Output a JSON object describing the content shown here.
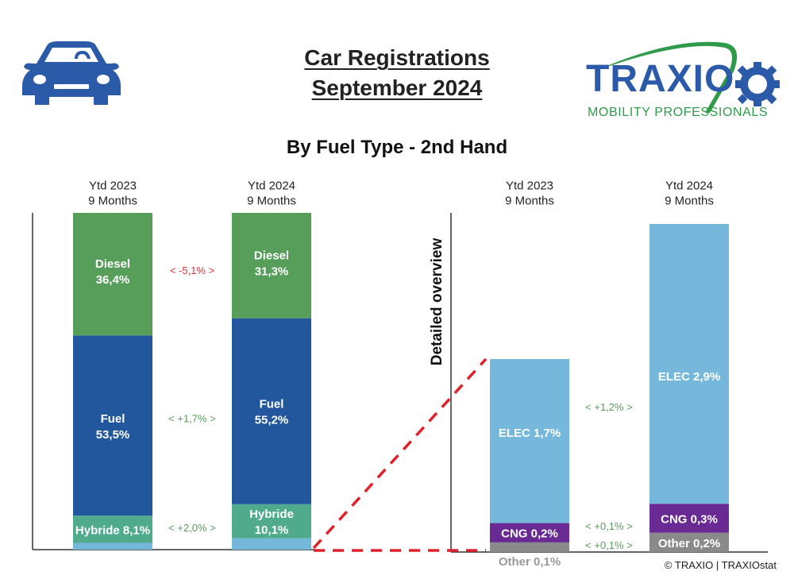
{
  "header": {
    "title_line1": "Car Registrations",
    "title_line2": "September 2024",
    "subtitle": "By Fuel Type - 2nd Hand",
    "logo_text": "TRAXIO",
    "logo_tagline": "MOBILITY PROFESSIONALS",
    "icons": [
      "car-icon",
      "traxio-logo"
    ]
  },
  "footer": {
    "copyright": "© TRAXIO | TRAXIOstat"
  },
  "colors": {
    "diesel": "#579e5a",
    "fuel": "#22579e",
    "hybride": "#4fab8c",
    "elec": "#76b8dc",
    "cng": "#6a2a94",
    "other": "#8a8a8a",
    "negative": "#d9303a",
    "positive": "#5a9a5e",
    "connector": "#e0202a"
  },
  "chart_data": [
    {
      "type": "bar",
      "stacked": true,
      "name": "main-overview",
      "categories": [
        "Ytd 2023\n9 Months",
        "Ytd 2024\n9 Months"
      ],
      "category_lines": [
        [
          "Ytd 2023",
          "9 Months"
        ],
        [
          "Ytd 2024",
          "9 Months"
        ]
      ],
      "series": [
        {
          "name": "Other/CNG/ELEC",
          "values": [
            2.0,
            3.4
          ],
          "labels": [
            "",
            ""
          ],
          "color_key": "elec"
        },
        {
          "name": "Hybride",
          "values": [
            8.1,
            10.1
          ],
          "labels": [
            [
              "Hybride 8,1%"
            ],
            [
              "Hybride",
              "10,1%"
            ]
          ],
          "color_key": "hybride"
        },
        {
          "name": "Fuel",
          "values": [
            53.5,
            55.2
          ],
          "labels": [
            [
              "Fuel",
              "53,5%"
            ],
            [
              "Fuel",
              "55,2%"
            ]
          ],
          "color_key": "fuel"
        },
        {
          "name": "Diesel",
          "values": [
            36.4,
            31.3
          ],
          "labels": [
            [
              "Diesel",
              "36,4%"
            ],
            [
              "Diesel",
              "31,3%"
            ]
          ],
          "color_key": "diesel"
        }
      ],
      "deltas": [
        {
          "series": "Diesel",
          "text": "<  -5,1%  >",
          "sign": "negative"
        },
        {
          "series": "Fuel",
          "text": "<  +1,7%  >",
          "sign": "positive"
        },
        {
          "series": "Hybride",
          "text": "<  +2,0%  >",
          "sign": "positive"
        }
      ],
      "ylim": [
        0,
        100
      ]
    },
    {
      "type": "bar",
      "stacked": true,
      "name": "detailed-overview",
      "ylabel": "Detailed overview",
      "categories": [
        "Ytd 2023\n9 Months",
        "Ytd 2024\n9 Months"
      ],
      "category_lines": [
        [
          "Ytd 2023",
          "9 Months"
        ],
        [
          "Ytd 2024",
          "9 Months"
        ]
      ],
      "series": [
        {
          "name": "Other",
          "values": [
            0.1,
            0.2
          ],
          "labels": [
            "Other 0,1%",
            "Other 0,2%"
          ],
          "color_key": "other"
        },
        {
          "name": "CNG",
          "values": [
            0.2,
            0.3
          ],
          "labels": [
            "CNG 0,2%",
            "CNG 0,3%"
          ],
          "color_key": "cng"
        },
        {
          "name": "ELEC",
          "values": [
            1.7,
            2.9
          ],
          "labels": [
            "ELEC 1,7%",
            "ELEC 2,9%"
          ],
          "color_key": "elec"
        }
      ],
      "deltas": [
        {
          "series": "ELEC",
          "text": "<  +1,2%  >",
          "sign": "positive"
        },
        {
          "series": "CNG",
          "text": "<  +0,1%  >",
          "sign": "positive"
        },
        {
          "series": "Other",
          "text": "<  +0,1%  >",
          "sign": "positive"
        }
      ],
      "ylim": [
        0,
        3.4
      ]
    }
  ]
}
